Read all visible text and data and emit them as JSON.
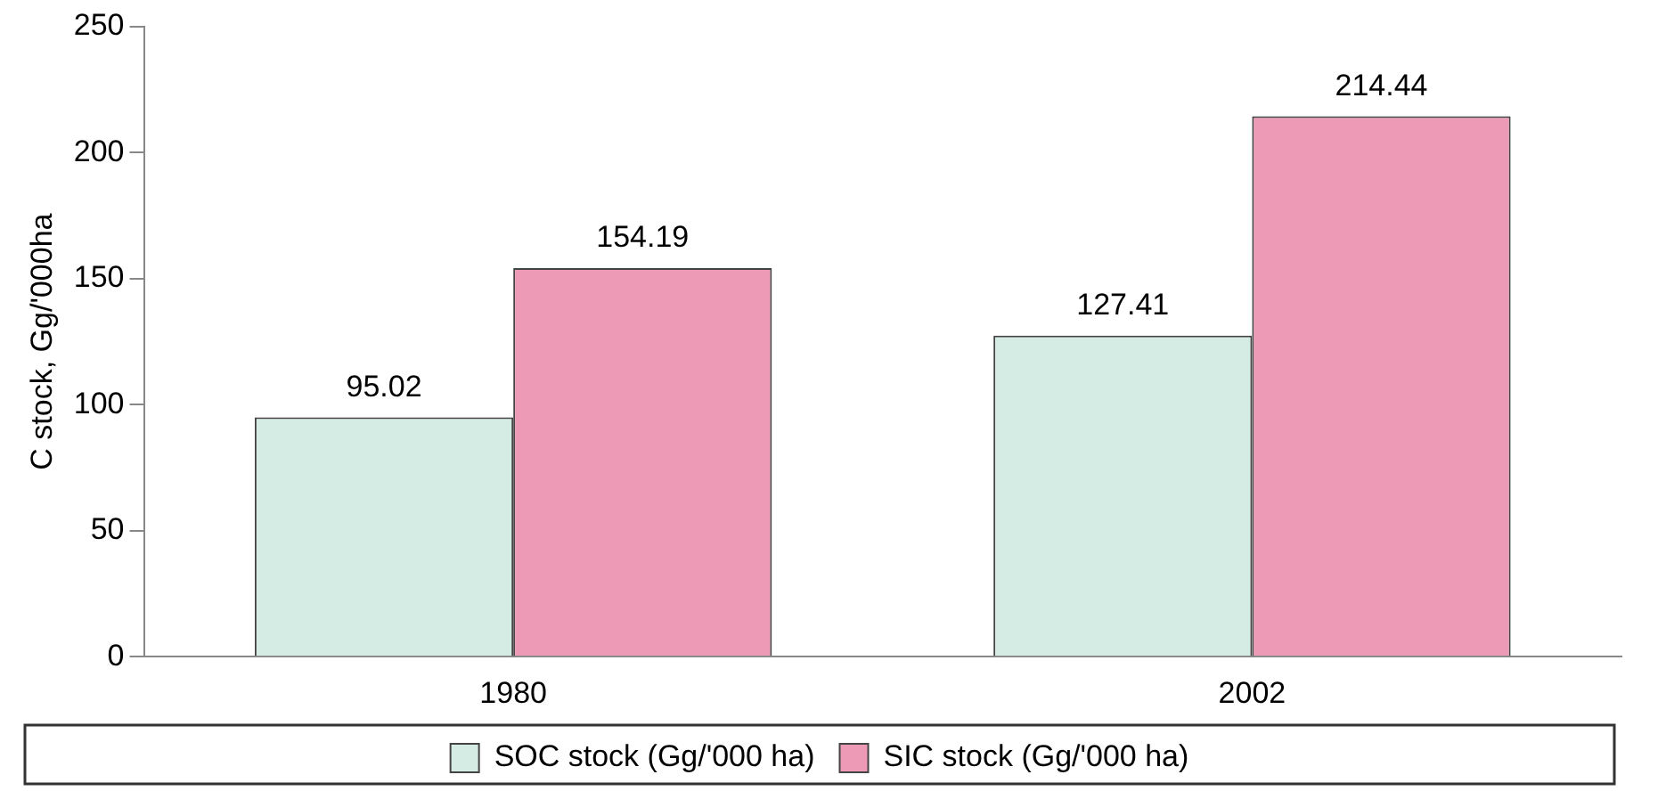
{
  "chart_data": {
    "type": "bar",
    "ylabel": "C stock, Gg/'000ha",
    "categories": [
      "1980",
      "2002"
    ],
    "series": [
      {
        "name": "SOC stock (Gg/'000 ha)",
        "color": "#d5ece4",
        "values": [
          95.02,
          127.41
        ]
      },
      {
        "name": "SIC stock (Gg/'000 ha)",
        "color": "#ec9ab6",
        "values": [
          154.19,
          214.44
        ]
      }
    ],
    "ylim": [
      0,
      250
    ],
    "yticks": [
      0,
      50,
      100,
      150,
      200,
      250
    ],
    "grid": false,
    "legend": "bottom",
    "data_labels": true
  }
}
